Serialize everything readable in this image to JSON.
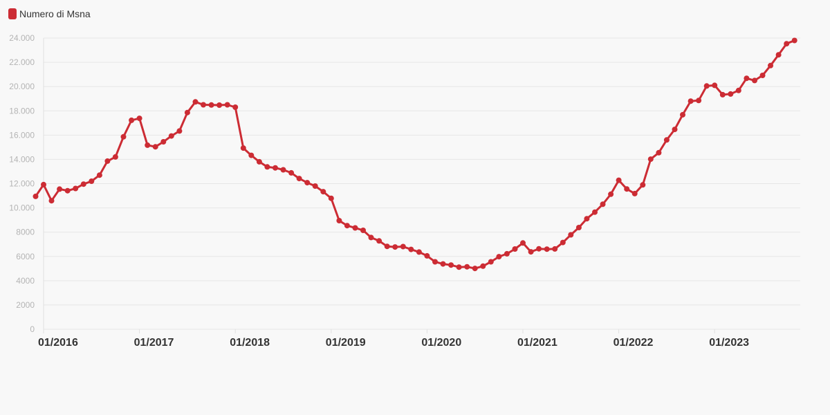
{
  "legend": {
    "label": "Numero di Msna"
  },
  "colors": {
    "series": "#cc2c34",
    "background": "#f8f8f8",
    "grid": "#e6e6e6"
  },
  "chart_data": {
    "type": "line",
    "title": "",
    "xlabel": "",
    "ylabel": "",
    "x_start": "2016-01",
    "x_end": "2023-12",
    "ylim": [
      0,
      24000
    ],
    "y_ticks": [
      {
        "value": 0,
        "label": "0"
      },
      {
        "value": 2000,
        "label": "2000"
      },
      {
        "value": 4000,
        "label": "4000"
      },
      {
        "value": 6000,
        "label": "6000"
      },
      {
        "value": 8000,
        "label": "8000"
      },
      {
        "value": 10000,
        "label": "10.000"
      },
      {
        "value": 12000,
        "label": "12.000"
      },
      {
        "value": 14000,
        "label": "14.000"
      },
      {
        "value": 16000,
        "label": "16.000"
      },
      {
        "value": 18000,
        "label": "18.000"
      },
      {
        "value": 20000,
        "label": "20.000"
      },
      {
        "value": 22000,
        "label": "22.000"
      },
      {
        "value": 24000,
        "label": "24.000"
      }
    ],
    "x_ticks": [
      {
        "value": "2016-01",
        "label": "01/2016"
      },
      {
        "value": "2017-01",
        "label": "01/2017"
      },
      {
        "value": "2018-01",
        "label": "01/2018"
      },
      {
        "value": "2019-01",
        "label": "01/2019"
      },
      {
        "value": "2020-01",
        "label": "01/2020"
      },
      {
        "value": "2021-01",
        "label": "01/2021"
      },
      {
        "value": "2022-01",
        "label": "01/2022"
      },
      {
        "value": "2023-01",
        "label": "01/2023"
      }
    ],
    "grid": true,
    "legend_position": "top-left",
    "series": [
      {
        "name": "Numero di Msna",
        "points": [
          [
            "2015-12",
            10950
          ],
          [
            "2016-01",
            11920
          ],
          [
            "2016-02",
            10590
          ],
          [
            "2016-03",
            11550
          ],
          [
            "2016-04",
            11420
          ],
          [
            "2016-05",
            11600
          ],
          [
            "2016-06",
            11960
          ],
          [
            "2016-07",
            12200
          ],
          [
            "2016-08",
            12700
          ],
          [
            "2016-09",
            13860
          ],
          [
            "2016-10",
            14200
          ],
          [
            "2016-11",
            15860
          ],
          [
            "2016-12",
            17220
          ],
          [
            "2017-01",
            17380
          ],
          [
            "2017-02",
            15170
          ],
          [
            "2017-03",
            15040
          ],
          [
            "2017-04",
            15450
          ],
          [
            "2017-05",
            15930
          ],
          [
            "2017-06",
            16340
          ],
          [
            "2017-07",
            17860
          ],
          [
            "2017-08",
            18740
          ],
          [
            "2017-09",
            18500
          ],
          [
            "2017-10",
            18480
          ],
          [
            "2017-11",
            18470
          ],
          [
            "2017-12",
            18500
          ],
          [
            "2018-01",
            18300
          ],
          [
            "2018-02",
            14930
          ],
          [
            "2018-03",
            14330
          ],
          [
            "2018-04",
            13800
          ],
          [
            "2018-05",
            13380
          ],
          [
            "2018-06",
            13300
          ],
          [
            "2018-07",
            13140
          ],
          [
            "2018-08",
            12890
          ],
          [
            "2018-09",
            12420
          ],
          [
            "2018-10",
            12080
          ],
          [
            "2018-11",
            11800
          ],
          [
            "2018-12",
            11340
          ],
          [
            "2019-01",
            10790
          ],
          [
            "2019-02",
            8950
          ],
          [
            "2019-03",
            8540
          ],
          [
            "2019-04",
            8350
          ],
          [
            "2019-05",
            8150
          ],
          [
            "2019-06",
            7560
          ],
          [
            "2019-07",
            7280
          ],
          [
            "2019-08",
            6830
          ],
          [
            "2019-09",
            6780
          ],
          [
            "2019-10",
            6810
          ],
          [
            "2019-11",
            6580
          ],
          [
            "2019-12",
            6360
          ],
          [
            "2020-01",
            6050
          ],
          [
            "2020-02",
            5560
          ],
          [
            "2020-03",
            5380
          ],
          [
            "2020-04",
            5290
          ],
          [
            "2020-05",
            5120
          ],
          [
            "2020-06",
            5150
          ],
          [
            "2020-07",
            5010
          ],
          [
            "2020-08",
            5200
          ],
          [
            "2020-09",
            5560
          ],
          [
            "2020-10",
            5980
          ],
          [
            "2020-11",
            6220
          ],
          [
            "2020-12",
            6610
          ],
          [
            "2021-01",
            7110
          ],
          [
            "2021-02",
            6380
          ],
          [
            "2021-03",
            6630
          ],
          [
            "2021-04",
            6600
          ],
          [
            "2021-05",
            6620
          ],
          [
            "2021-06",
            7150
          ],
          [
            "2021-07",
            7780
          ],
          [
            "2021-08",
            8380
          ],
          [
            "2021-09",
            9110
          ],
          [
            "2021-10",
            9650
          ],
          [
            "2021-11",
            10300
          ],
          [
            "2021-12",
            11130
          ],
          [
            "2022-01",
            12280
          ],
          [
            "2022-02",
            11560
          ],
          [
            "2022-03",
            11180
          ],
          [
            "2022-04",
            11900
          ],
          [
            "2022-05",
            14020
          ],
          [
            "2022-06",
            14550
          ],
          [
            "2022-07",
            15600
          ],
          [
            "2022-08",
            16470
          ],
          [
            "2022-09",
            17680
          ],
          [
            "2022-10",
            18800
          ],
          [
            "2022-11",
            18850
          ],
          [
            "2022-12",
            20050
          ],
          [
            "2023-01",
            20100
          ],
          [
            "2023-02",
            19330
          ],
          [
            "2023-03",
            19390
          ],
          [
            "2023-04",
            19680
          ],
          [
            "2023-05",
            20680
          ],
          [
            "2023-06",
            20500
          ],
          [
            "2023-07",
            20920
          ],
          [
            "2023-08",
            21730
          ],
          [
            "2023-09",
            22620
          ],
          [
            "2023-10",
            23530
          ],
          [
            "2023-11",
            23800
          ]
        ]
      }
    ]
  }
}
